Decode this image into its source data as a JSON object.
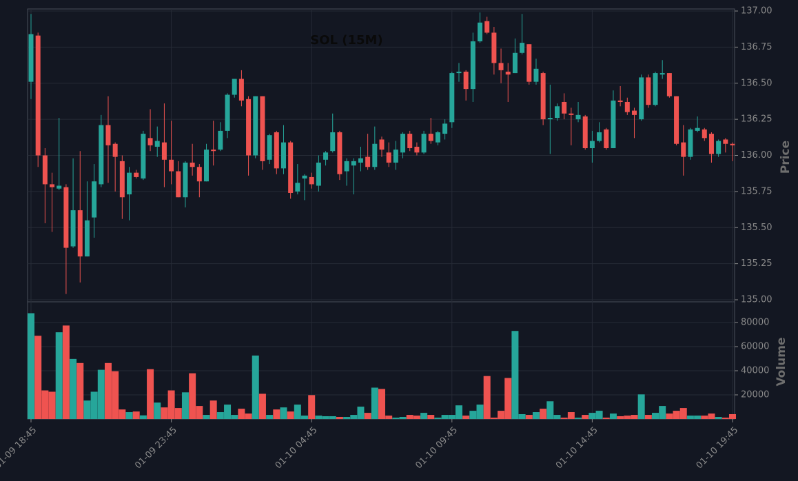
{
  "chart_data": {
    "type": "candlestick",
    "title": "SOL (15M)",
    "ylabel": "Price",
    "volume_ylabel": "Volume",
    "up_color": "#26a69a",
    "down_color": "#ef5350",
    "grid": true,
    "ylim": [
      135,
      137
    ],
    "yticks": [
      {
        "value": 135,
        "label": "135.00"
      },
      {
        "value": 135.25,
        "label": "135.25"
      },
      {
        "value": 135.5,
        "label": "135.50"
      },
      {
        "value": 135.75,
        "label": "135.75"
      },
      {
        "value": 136,
        "label": "136.00"
      },
      {
        "value": 136.25,
        "label": "136.25"
      },
      {
        "value": 136.5,
        "label": "136.50"
      },
      {
        "value": 136.75,
        "label": "136.75"
      },
      {
        "value": 137,
        "label": "137.00"
      }
    ],
    "volume_ylim": [
      0,
      96000
    ],
    "volume_yticks": [
      20000,
      40000,
      60000,
      80000
    ],
    "categories": [
      "01-09 18:45",
      null,
      null,
      null,
      null,
      null,
      null,
      null,
      null,
      null,
      null,
      null,
      null,
      null,
      null,
      null,
      null,
      null,
      null,
      null,
      "01-09 23:45",
      null,
      null,
      null,
      null,
      null,
      null,
      null,
      null,
      null,
      null,
      null,
      null,
      null,
      null,
      null,
      null,
      null,
      null,
      null,
      "01-10 04:45",
      null,
      null,
      null,
      null,
      null,
      null,
      null,
      null,
      null,
      null,
      null,
      null,
      null,
      null,
      null,
      null,
      null,
      null,
      null,
      "01-10 09:45",
      null,
      null,
      null,
      null,
      null,
      null,
      null,
      null,
      null,
      null,
      null,
      null,
      null,
      null,
      null,
      null,
      null,
      null,
      null,
      "01-10 14:45",
      null,
      null,
      null,
      null,
      null,
      null,
      null,
      null,
      null,
      null,
      null,
      null,
      null,
      null,
      null,
      null,
      null,
      null,
      null,
      "01-10 19:45"
    ],
    "open": [
      136.51,
      136.83,
      136.0,
      135.8,
      135.77,
      135.78,
      135.37,
      135.62,
      135.3,
      135.57,
      135.8,
      136.21,
      136.08,
      135.96,
      135.73,
      135.88,
      135.84,
      136.12,
      136.06,
      136.09,
      135.97,
      135.89,
      135.71,
      135.95,
      135.92,
      135.82,
      136.04,
      136.04,
      136.17,
      136.42,
      136.53,
      136.39,
      136.0,
      136.41,
      135.97,
      136.16,
      135.91,
      136.09,
      135.75,
      135.84,
      135.85,
      135.79,
      135.97,
      136.03,
      136.16,
      135.89,
      135.93,
      135.95,
      135.99,
      135.92,
      136.11,
      136.02,
      135.95,
      136.02,
      136.15,
      136.06,
      136.02,
      136.15,
      136.09,
      136.15,
      136.23,
      136.57,
      136.58,
      136.46,
      136.79,
      136.93,
      136.85,
      136.64,
      136.58,
      136.57,
      136.71,
      136.77,
      136.51,
      136.57,
      136.25,
      136.26,
      136.37,
      136.29,
      136.25,
      136.27,
      136.05,
      136.1,
      136.18,
      136.05,
      136.38,
      136.37,
      136.31,
      136.25,
      136.54,
      136.35,
      136.56,
      136.57,
      136.41,
      136.09,
      135.99,
      136.17,
      136.18,
      136.15,
      136.01,
      136.11,
      136.08
    ],
    "high": [
      136.98,
      136.85,
      136.05,
      135.88,
      136.26,
      135.8,
      135.98,
      136.03,
      135.82,
      135.94,
      136.28,
      136.41,
      136.09,
      136.0,
      135.92,
      135.9,
      136.17,
      136.32,
      136.2,
      136.36,
      136.24,
      135.96,
      135.96,
      136.08,
      135.94,
      136.08,
      136.24,
      136.23,
      136.43,
      136.53,
      136.59,
      136.41,
      136.41,
      136.41,
      136.15,
      136.17,
      136.21,
      136.1,
      135.94,
      135.87,
      135.88,
      136.0,
      136.03,
      136.29,
      136.17,
      135.98,
      135.98,
      136.06,
      136.15,
      136.2,
      136.13,
      136.09,
      136.1,
      136.16,
      136.17,
      136.09,
      136.17,
      136.26,
      136.17,
      136.25,
      136.58,
      136.64,
      136.59,
      136.85,
      136.99,
      136.96,
      136.89,
      136.74,
      136.64,
      136.81,
      136.98,
      136.77,
      136.67,
      136.58,
      136.49,
      136.36,
      136.43,
      136.33,
      136.37,
      136.28,
      136.17,
      136.23,
      136.19,
      136.45,
      136.48,
      136.4,
      136.33,
      136.56,
      136.56,
      136.58,
      136.66,
      136.57,
      136.41,
      136.21,
      136.19,
      136.27,
      136.19,
      136.16,
      136.11,
      136.12,
      136.09
    ],
    "low": [
      136.39,
      135.92,
      135.53,
      135.47,
      135.76,
      135.04,
      135.36,
      135.12,
      135.3,
      135.43,
      135.78,
      135.81,
      135.75,
      135.56,
      135.55,
      135.84,
      135.83,
      136.03,
      135.99,
      135.78,
      135.8,
      135.71,
      135.64,
      135.86,
      135.71,
      135.82,
      135.93,
      136.03,
      136.12,
      136.4,
      136.34,
      135.86,
      135.98,
      135.9,
      135.94,
      135.87,
      135.87,
      135.7,
      135.73,
      135.69,
      135.77,
      135.75,
      135.93,
      136.02,
      135.83,
      135.79,
      135.73,
      135.89,
      135.9,
      135.9,
      135.99,
      135.92,
      135.9,
      135.98,
      136.03,
      136.0,
      136.01,
      136.08,
      136.07,
      136.11,
      136.19,
      136.51,
      136.38,
      136.37,
      136.78,
      136.84,
      136.56,
      136.5,
      136.37,
      136.57,
      136.7,
      136.49,
      136.49,
      136.21,
      136.01,
      136.24,
      136.25,
      136.07,
      136.23,
      136.04,
      135.95,
      136.09,
      136.04,
      136.05,
      136.34,
      136.28,
      136.12,
      136.24,
      136.33,
      136.34,
      136.53,
      136.4,
      136.07,
      135.86,
      135.97,
      136.16,
      136.1,
      135.95,
      135.99,
      136.02,
      135.96
    ],
    "close": [
      136.84,
      136.0,
      135.8,
      135.78,
      135.79,
      135.36,
      135.62,
      135.3,
      135.55,
      135.82,
      136.21,
      136.07,
      135.99,
      135.71,
      135.88,
      135.85,
      136.15,
      136.07,
      136.1,
      135.97,
      135.89,
      135.71,
      135.95,
      135.92,
      135.82,
      136.04,
      136.03,
      136.17,
      136.42,
      136.53,
      136.38,
      136.0,
      136.41,
      135.96,
      136.14,
      135.91,
      136.09,
      135.74,
      135.81,
      135.86,
      135.8,
      135.95,
      136.02,
      136.16,
      135.87,
      135.96,
      135.96,
      135.98,
      135.92,
      136.08,
      136.04,
      135.95,
      136.04,
      136.15,
      136.05,
      136.02,
      136.15,
      136.1,
      136.16,
      136.22,
      136.57,
      136.58,
      136.46,
      136.79,
      136.92,
      136.85,
      136.64,
      136.59,
      136.56,
      136.71,
      136.78,
      136.51,
      136.6,
      136.25,
      136.26,
      136.34,
      136.29,
      136.28,
      136.28,
      136.05,
      136.1,
      136.16,
      136.05,
      136.38,
      136.37,
      136.3,
      136.28,
      136.54,
      136.35,
      136.57,
      136.57,
      136.41,
      136.08,
      135.99,
      136.18,
      136.19,
      136.12,
      136.01,
      136.1,
      136.08,
      136.07
    ],
    "volume": [
      87700,
      69000,
      23700,
      22600,
      71900,
      77500,
      49800,
      46400,
      15300,
      22600,
      40800,
      46400,
      39600,
      7900,
      5700,
      6200,
      3000,
      41300,
      13600,
      9600,
      23700,
      9100,
      22100,
      37900,
      10800,
      3400,
      15300,
      5700,
      11900,
      3400,
      8500,
      4500,
      52600,
      20900,
      3400,
      7900,
      9600,
      6200,
      11900,
      2800,
      19800,
      2800,
      2300,
      2300,
      1700,
      1700,
      3400,
      10200,
      5100,
      26000,
      24900,
      2800,
      1100,
      1700,
      3400,
      2800,
      5100,
      3400,
      1100,
      3400,
      3400,
      11300,
      2800,
      6800,
      11900,
      35600,
      1100,
      6800,
      34000,
      73000,
      4000,
      3400,
      5700,
      8500,
      14700,
      3400,
      1100,
      5700,
      1100,
      3400,
      5100,
      6800,
      1100,
      4500,
      2300,
      2800,
      3400,
      20400,
      3400,
      5100,
      10800,
      4500,
      6800,
      9100,
      2800,
      2800,
      2800,
      4500,
      1700,
      1100,
      4000
    ]
  }
}
